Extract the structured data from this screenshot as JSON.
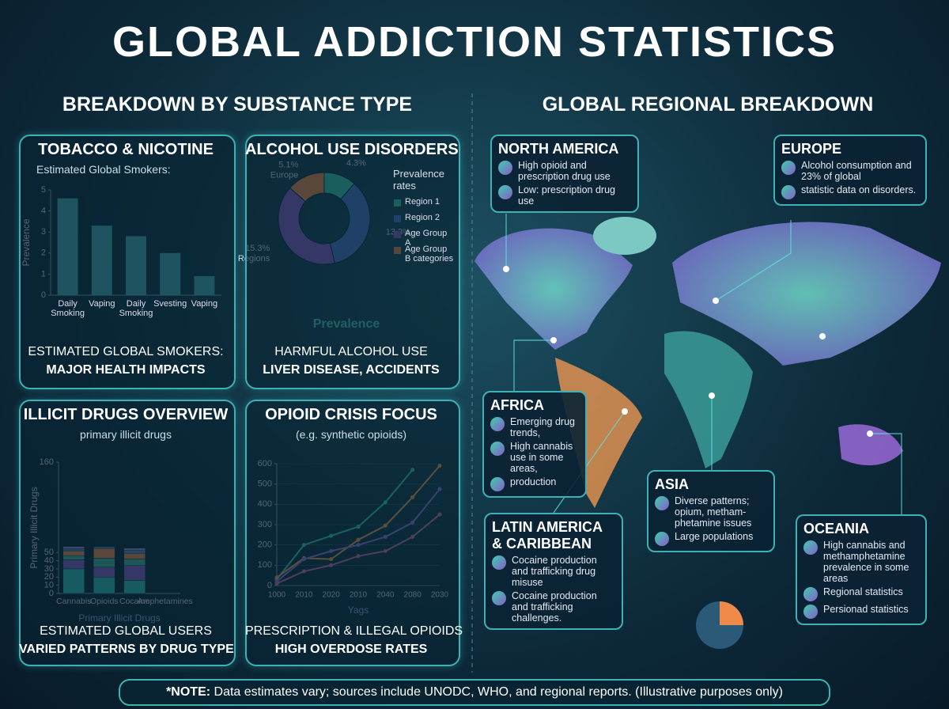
{
  "title": "GLOBAL ADDICTION STATISTICS",
  "left_heading": "BREAKDOWN BY SUBSTANCE TYPE",
  "right_heading": "GLOBAL REGIONAL BREAKDOWN",
  "chart_data": [
    {
      "type": "bar",
      "title": "TOBACCO & NICOTINE",
      "subtitle": "Estimated Global Smokers:",
      "y_label": "Prevalence",
      "categories": [
        "Daily Smoking",
        "Vaping",
        "Daily Smoking",
        "Svesting",
        "Vaping"
      ],
      "values": [
        4.6,
        3.3,
        2.8,
        2.0,
        0.9
      ],
      "color": "#4cbcc0",
      "ylim": [
        0,
        5
      ],
      "yticks": [
        0,
        1,
        2,
        3,
        4,
        5
      ],
      "footer": [
        "ESTIMATED GLOBAL SMOKERS:",
        "MAJOR HEALTH IMPACTS"
      ]
    },
    {
      "type": "pie",
      "title": "ALCOHOL USE DISORDERS",
      "legend_title": "Prevalence rates",
      "categories": [
        "Region 1",
        "Region 2",
        "Age Group A",
        "Age Group B categories"
      ],
      "values": [
        4.3,
        13.3,
        15.3,
        5.1
      ],
      "value_labels": [
        "4.3%",
        "13.3%",
        "15.3%",
        "5.1%"
      ],
      "label_notes": {
        "2": "Regions",
        "3": "Europe"
      },
      "colors": [
        "#3ccfb0",
        "#4a78c8",
        "#8a5cc8",
        "#f08a4a"
      ],
      "caption": "Prevalence",
      "footer": [
        "HARMFUL ALCOHOL USE",
        "LIVER DISEASE, ACCIDENTS"
      ]
    },
    {
      "type": "stacked_bar",
      "title": "ILLICIT DRUGS OVERVIEW",
      "subtitle": "primary illicit drugs",
      "y_label": "Primary Illicit Drugs",
      "x_label": "Primary Illicit Drugs",
      "categories": [
        "Cannabis",
        "Opioids",
        "Cocaine",
        "Amphetamines"
      ],
      "series": [
        {
          "color": "#36c4b4",
          "values": [
            30,
            20,
            16,
            null
          ]
        },
        {
          "color": "#8a5cc8",
          "values": [
            11,
            12,
            18,
            null
          ]
        },
        {
          "color": "#4cb8a0",
          "values": [
            5,
            11,
            8,
            null
          ]
        },
        {
          "color": "#f08a4a",
          "values": [
            6,
            12,
            7,
            null
          ]
        },
        {
          "color": "#5a8ad8",
          "values": [
            3,
            2,
            4,
            null
          ]
        },
        {
          "color": "#c8a8e8",
          "values": [
            2,
            null,
            2,
            null
          ]
        }
      ],
      "ylim": [
        0,
        160
      ],
      "yticks": [
        0,
        10,
        20,
        30,
        40,
        50,
        160
      ],
      "footer": [
        "ESTIMATED GLOBAL USERS",
        "VARIED PATTERNS BY DRUG TYPE"
      ]
    },
    {
      "type": "line",
      "title": "OPIOID CRISIS FOCUS",
      "subtitle": "(e.g. synthetic opioids)",
      "x_label": "Yags",
      "categories": [
        "1000",
        "2010",
        "2020",
        "2010",
        "2040",
        "2080",
        "2030"
      ],
      "series": [
        {
          "color": "#3cd0b8",
          "values": [
            30,
            200,
            245,
            290,
            410,
            570,
            null
          ]
        },
        {
          "color": "#f0a050",
          "values": [
            40,
            135,
            130,
            225,
            295,
            435,
            590
          ]
        },
        {
          "color": "#9a7ae0",
          "values": [
            20,
            130,
            170,
            200,
            240,
            310,
            475
          ]
        },
        {
          "color": "#d070b0",
          "values": [
            10,
            70,
            100,
            145,
            170,
            240,
            350
          ]
        }
      ],
      "ylim": [
        0,
        600
      ],
      "yticks": [
        0,
        100,
        200,
        300,
        400,
        500,
        600
      ],
      "footer": [
        "PRESCRIPTION & ILLEGAL OPIOIDS",
        "HIGH OVERDOSE RATES"
      ]
    }
  ],
  "regions": [
    {
      "name": "NORTH AMERICA",
      "items": [
        "High opioid and prescription drug use",
        "Low: prescription drug use"
      ]
    },
    {
      "name": "EUROPE",
      "items": [
        "Alcohol consumption and 23% of global",
        "statistic data on disorders."
      ]
    },
    {
      "name": "AFRICA",
      "items": [
        "Emerging drug trends,",
        "High cannabis use in some areas,",
        "production"
      ]
    },
    {
      "name": "ASIA",
      "items": [
        "Diverse patterns; opium, metham-phetamine issues",
        "Large populations"
      ]
    },
    {
      "name": "LATIN AMERICA & CARIBBEAN",
      "items": [
        "Cocaine production and trafficking drug misuse",
        "Cocaine production and trafficking challenges."
      ]
    },
    {
      "name": "OCEANIA",
      "items": [
        "High cannabis and methamphetamine prevalence in some areas",
        "Regional statistics",
        "Persionad statistics"
      ]
    }
  ],
  "note": {
    "label": "*NOTE:",
    "text": "Data estimates vary; sources include UNODC, WHO, and regional reports. (Illustrative purposes only)"
  }
}
